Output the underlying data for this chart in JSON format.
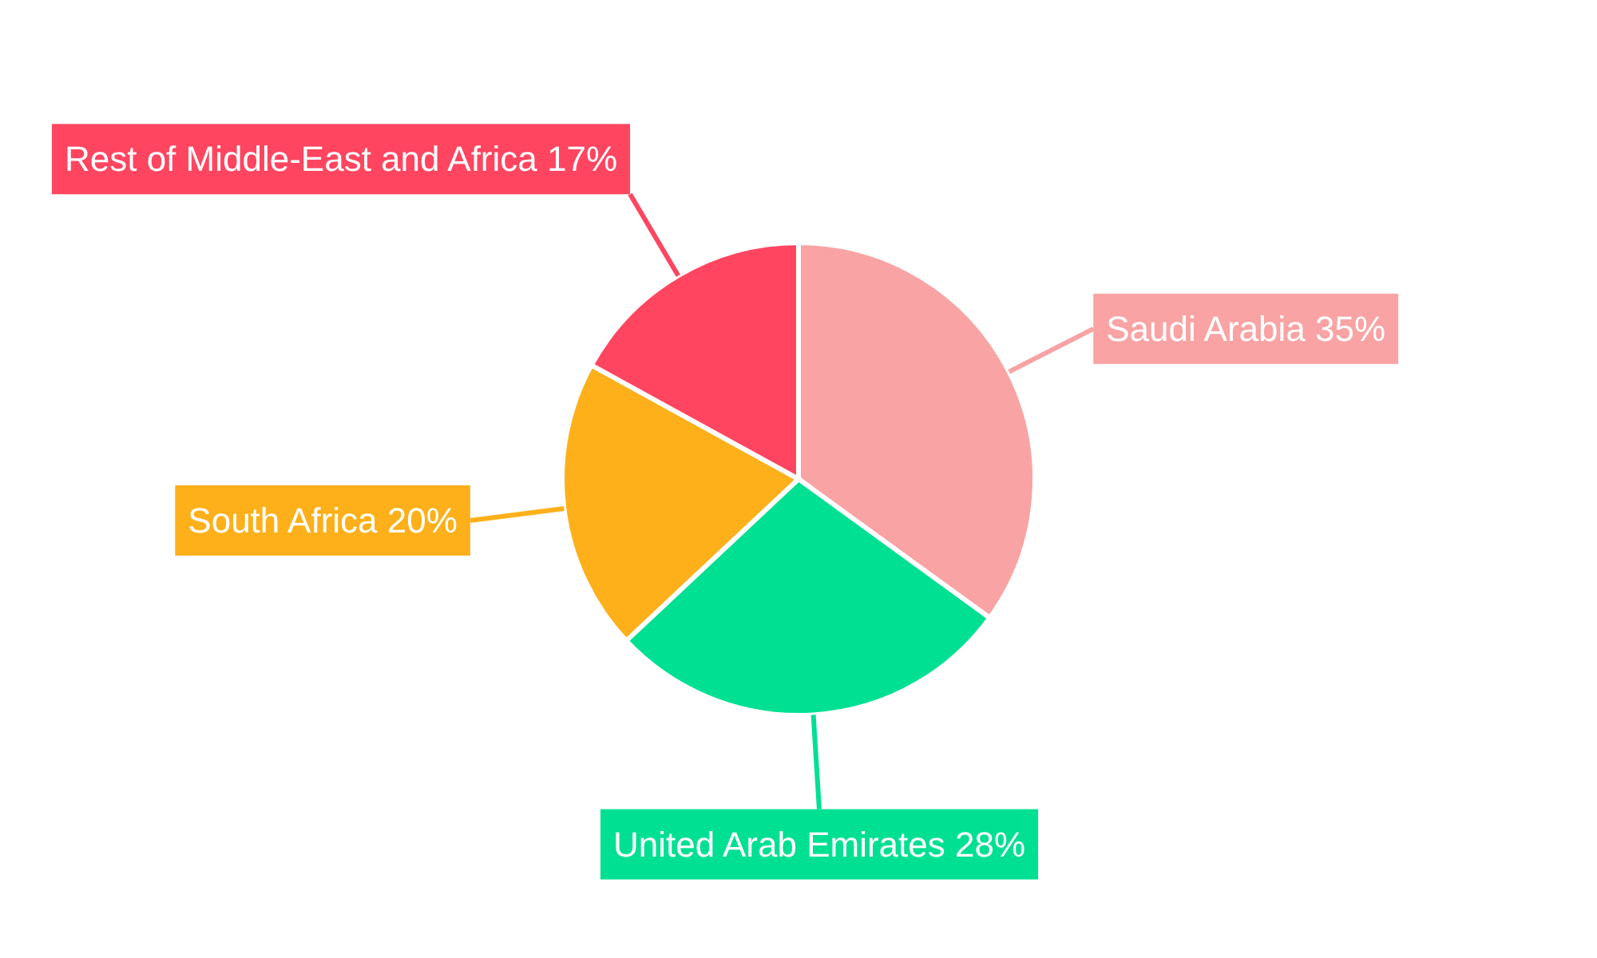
{
  "chart_data": {
    "type": "pie",
    "categories": [
      "Saudi Arabia",
      "United Arab Emirates",
      "South Africa",
      "Rest of Middle-East and Africa"
    ],
    "values": [
      35,
      28,
      20,
      17
    ],
    "value_labels": [
      "35%",
      "28%",
      "20%",
      "17%"
    ],
    "colors": [
      "#f9a3a4",
      "#00e092",
      "#fdb01a",
      "#ff4560"
    ]
  }
}
